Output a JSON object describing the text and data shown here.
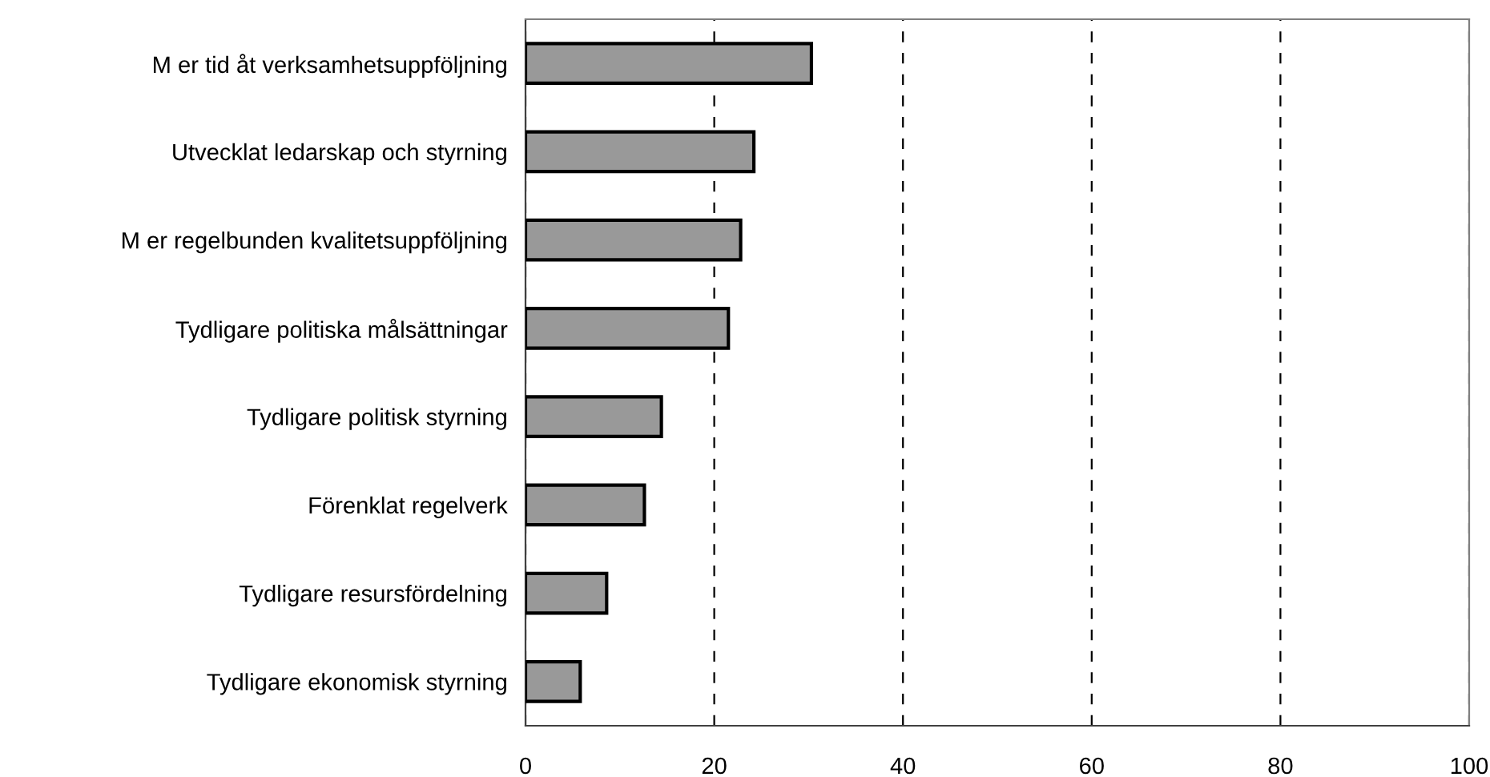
{
  "chart_data": {
    "type": "bar",
    "orientation": "horizontal",
    "categories": [
      "M er tid åt verksamhetsuppföljning",
      "Utvecklat ledarskap och styrning",
      "M er regelbunden kvalitetsuppföljning",
      "Tydligare politiska målsättningar",
      "Tydligare politisk styrning",
      "Förenklat regelverk",
      "Tydligare resursfördelning",
      "Tydligare ekonomisk styrning"
    ],
    "values": [
      30.3,
      24.2,
      22.8,
      21.5,
      14.4,
      12.6,
      8.6,
      5.8
    ],
    "color": "#999999",
    "xlim": [
      0,
      100
    ],
    "xticks": [
      0,
      20,
      40,
      60,
      80,
      100
    ],
    "grid": "x",
    "line_style": "dashed"
  }
}
